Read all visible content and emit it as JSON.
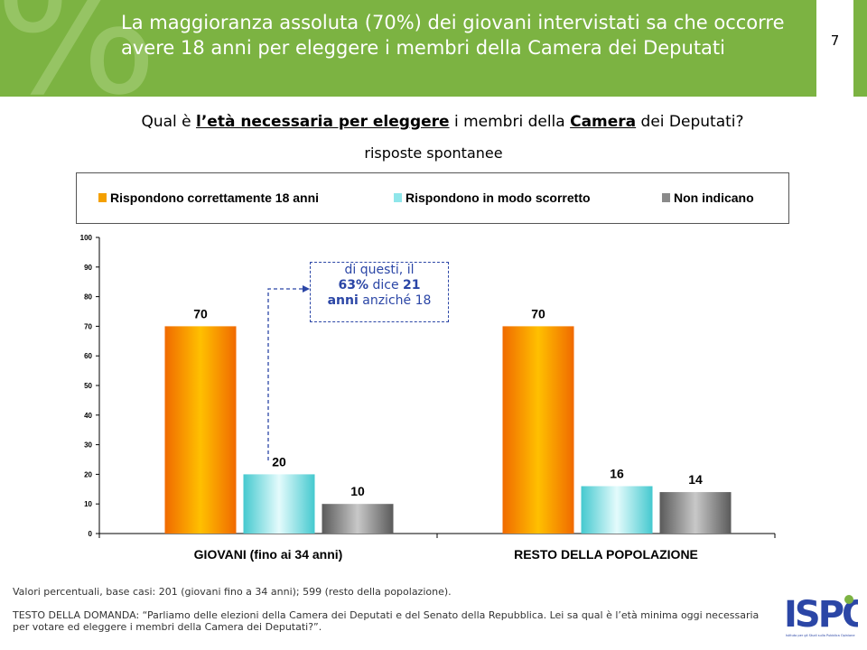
{
  "header": {
    "title": "La maggioranza assoluta (70%) dei giovani intervistati sa che occorre avere 18 anni per eleggere i membri della Camera dei Deputati",
    "glyph": "%",
    "page_number": "7",
    "color": "#7cb342"
  },
  "question": {
    "part1": "Qual è ",
    "strong1": "l’età necessaria per eleggere",
    "part2": " i membri della ",
    "strong2": "Camera",
    "part3": " dei Deputati?",
    "subtitle": "risposte spontanee"
  },
  "legend": [
    {
      "label": "Rispondono correttamente 18 anni",
      "color": "#f4a000"
    },
    {
      "label": "Rispondono in modo scorretto",
      "color": "#8fe6ea"
    },
    {
      "label": "Non indicano",
      "color": "#8a8a8a"
    }
  ],
  "callout": {
    "line1": "di questi, il",
    "pct": "63%",
    "mid": " dice ",
    "num": "21",
    "anni": "anni",
    "rest": " anziché 18"
  },
  "chart_data": {
    "type": "bar",
    "categories": [
      "GIOVANI (fino ai 34 anni)",
      "RESTO DELLA POPOLAZIONE"
    ],
    "series": [
      {
        "name": "Rispondono correttamente 18 anni",
        "values": [
          70,
          70
        ],
        "color": "#f4a000"
      },
      {
        "name": "Rispondono in modo scorretto",
        "values": [
          20,
          16
        ],
        "color": "#8fe6ea"
      },
      {
        "name": "Non indicano",
        "values": [
          10,
          14
        ],
        "color": "#8a8a8a"
      }
    ],
    "ylim": [
      0,
      100
    ],
    "yticks": [
      0,
      10,
      20,
      30,
      40,
      50,
      60,
      70,
      80,
      90,
      100
    ],
    "legend_position": "top",
    "grid": false
  },
  "notes": {
    "base": "Valori percentuali, base casi: 201 (giovani fino a 34 anni); 599 (resto della popolazione).",
    "domanda": "TESTO DELLA DOMANDA: “Parliamo delle elezioni della Camera dei Deputati e del Senato della Repubblica. Lei sa qual è l’età minima oggi necessaria per votare ed eleggere i membri della Camera dei Deputati?”."
  },
  "logo": {
    "text": "ISPO",
    "subtitle": "Istituto per gli Studi sulla Pubblica Opinione"
  }
}
